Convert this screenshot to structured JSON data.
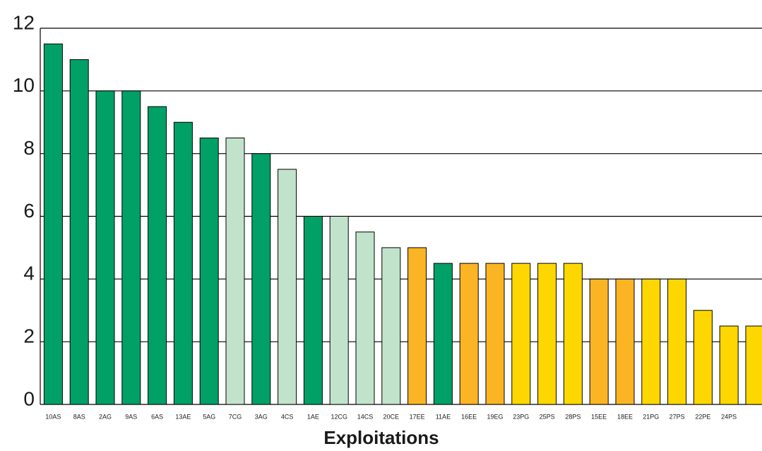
{
  "chart_data": {
    "type": "bar",
    "x_label": "Exploitations",
    "categories": [
      "10AS",
      "8AS",
      "2AG",
      "9AS",
      "6AS",
      "13AE",
      "5AG",
      "7CG",
      "3AG",
      "4CS",
      "1AE",
      "12CG",
      "14CS",
      "20CE",
      "17EE",
      "11AE",
      "16EE",
      "19EG",
      "23PG",
      "25PS",
      "28PS",
      "15EE",
      "18EE",
      "21PG",
      "27PS",
      "22PE",
      "24PS",
      null
    ],
    "values": [
      11.5,
      11,
      10,
      10,
      9.5,
      9,
      8.5,
      8.5,
      8,
      7.5,
      6,
      6,
      5.5,
      5,
      5,
      4.5,
      4.5,
      4.5,
      4.5,
      4.5,
      4.5,
      4,
      4,
      4,
      4,
      3,
      2.5,
      2.5
    ],
    "colors": [
      "#00a067",
      "#00a067",
      "#00a067",
      "#00a067",
      "#00a067",
      "#00a067",
      "#00a067",
      "#c2e3cb",
      "#00a067",
      "#c2e3cb",
      "#00a067",
      "#c2e3cb",
      "#c2e3cb",
      "#c2e3cb",
      "#fbb424",
      "#00a067",
      "#fbb424",
      "#fbb424",
      "#ffd700",
      "#ffd700",
      "#ffd700",
      "#fbb424",
      "#fbb424",
      "#ffd700",
      "#ffd700",
      "#ffd700",
      "#ffd700",
      "#ffd700"
    ],
    "ylim": [
      0,
      12
    ],
    "yticks": [
      0,
      2,
      4,
      6,
      8,
      10,
      12
    ],
    "grid": true
  }
}
